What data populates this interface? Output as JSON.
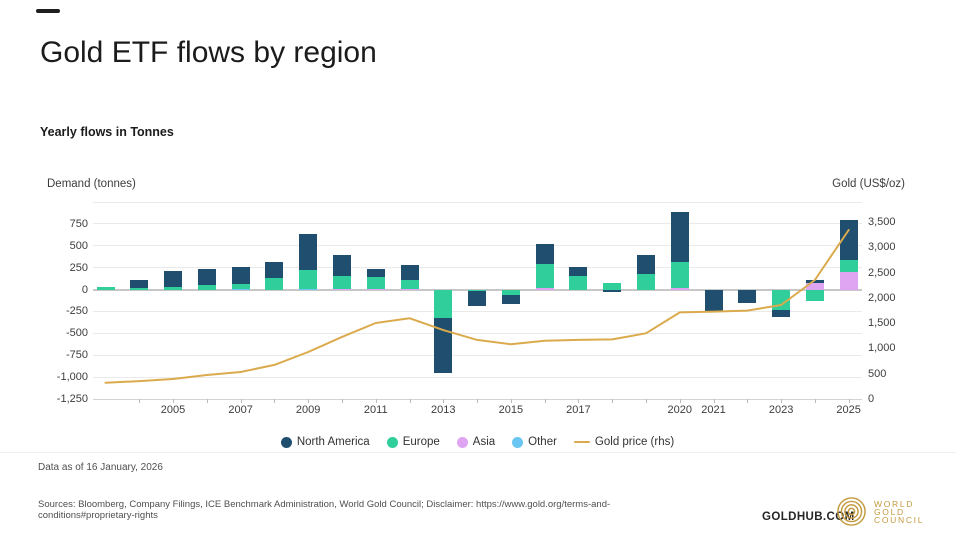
{
  "page": {
    "title": "Gold ETF flows by region",
    "subtitle": "Yearly flows in Tonnes"
  },
  "chart_data": {
    "type": "bar",
    "subtype": "stacked-bars-with-line-overlay",
    "title": "Gold ETF flows by region",
    "left_axis": {
      "title": "Demand (tonnes)",
      "min": -1250,
      "max": 1000,
      "gridline_step": 250,
      "ticks": [
        {
          "v": 750,
          "t": "750"
        },
        {
          "v": 500,
          "t": "500"
        },
        {
          "v": 250,
          "t": "250"
        },
        {
          "v": 0,
          "t": "0"
        },
        {
          "v": -250,
          "t": "-250"
        },
        {
          "v": -500,
          "t": "-500"
        },
        {
          "v": -750,
          "t": "-750"
        },
        {
          "v": -1000,
          "t": "-1,000"
        },
        {
          "v": -1250,
          "t": "-1,250"
        }
      ]
    },
    "right_axis": {
      "title": "Gold (US$/oz)",
      "min": 0,
      "max": 3900,
      "ticks": [
        {
          "v": 3500,
          "t": "3,500"
        },
        {
          "v": 3000,
          "t": "3,000"
        },
        {
          "v": 2500,
          "t": "2,500"
        },
        {
          "v": 2000,
          "t": "2,000"
        },
        {
          "v": 1500,
          "t": "1,500"
        },
        {
          "v": 1000,
          "t": "1,000"
        },
        {
          "v": 500,
          "t": "500"
        },
        {
          "v": 0,
          "t": "0"
        }
      ]
    },
    "years": [
      2003,
      2004,
      2005,
      2006,
      2007,
      2008,
      2009,
      2010,
      2011,
      2012,
      2013,
      2014,
      2015,
      2016,
      2017,
      2018,
      2019,
      2020,
      2021,
      2022,
      2023,
      2024,
      2025
    ],
    "x_ticks": [
      {
        "y": 2005,
        "t": "2005"
      },
      {
        "y": 2007,
        "t": "2007"
      },
      {
        "y": 2009,
        "t": "2009"
      },
      {
        "y": 2011,
        "t": "2011"
      },
      {
        "y": 2013,
        "t": "2013"
      },
      {
        "y": 2015,
        "t": "2015"
      },
      {
        "y": 2017,
        "t": "2017"
      },
      {
        "y": 2020,
        "t": "2020"
      },
      {
        "y": 2021,
        "t": "2021"
      },
      {
        "y": 2023,
        "t": "2023"
      },
      {
        "y": 2025,
        "t": "2025"
      }
    ],
    "series": [
      {
        "name": "North America",
        "color": "#1f4e6e",
        "values": [
          0,
          90,
          185,
          190,
          195,
          185,
          405,
          235,
          95,
          170,
          -625,
          -170,
          -95,
          230,
          100,
          -25,
          210,
          570,
          -235,
          -145,
          -75,
          35,
          455
        ]
      },
      {
        "name": "Europe",
        "color": "#2fce9b",
        "values": [
          25,
          15,
          30,
          50,
          55,
          130,
          215,
          150,
          130,
          95,
          -330,
          -20,
          -65,
          280,
          155,
          75,
          180,
          295,
          0,
          0,
          -225,
          -135,
          135
        ]
      },
      {
        "name": "Asia",
        "color": "#dfa5f2",
        "values": [
          0,
          0,
          0,
          0,
          0,
          0,
          0,
          10,
          10,
          10,
          0,
          0,
          0,
          15,
          0,
          0,
          0,
          20,
          -10,
          -10,
          -10,
          70,
          200
        ]
      },
      {
        "name": "Other",
        "color": "#69c6f2",
        "values": [
          0,
          0,
          0,
          0,
          10,
          0,
          10,
          0,
          0,
          0,
          0,
          0,
          0,
          0,
          0,
          0,
          0,
          0,
          0,
          0,
          0,
          0,
          0
        ]
      }
    ],
    "line_series": {
      "name": "Gold price (rhs)",
      "axis": "right",
      "color": "#dbaa4c",
      "values": [
        320,
        355,
        395,
        475,
        535,
        675,
        930,
        1230,
        1505,
        1600,
        1365,
        1170,
        1085,
        1155,
        1170,
        1180,
        1300,
        1715,
        1730,
        1750,
        1860,
        2355,
        3345
      ]
    },
    "stack_order_from_axis": [
      "Other",
      "Asia",
      "Europe",
      "North America"
    ]
  },
  "legend": {
    "items": [
      {
        "label": "North America",
        "marker": "dot",
        "color": "#1f4e6e"
      },
      {
        "label": "Europe",
        "marker": "dot",
        "color": "#2fce9b"
      },
      {
        "label": "Asia",
        "marker": "dot",
        "color": "#dfa5f2"
      },
      {
        "label": "Other",
        "marker": "dot",
        "color": "#69c6f2"
      },
      {
        "label": "Gold price (rhs)",
        "marker": "line",
        "color": "#dbaa4c"
      }
    ]
  },
  "footer": {
    "data_as_of": "Data as of 16 January, 2026",
    "sources": "Sources: Bloomberg, Company Filings, ICE Benchmark Administration, World Gold Council; Disclaimer: https://www.gold.org/terms-and-conditions#proprietary-rights",
    "goldhub": "GOLDHUB.COM",
    "logo": {
      "line1": "WORLD",
      "line2": "GOLD",
      "line3": "COUNCIL"
    }
  }
}
